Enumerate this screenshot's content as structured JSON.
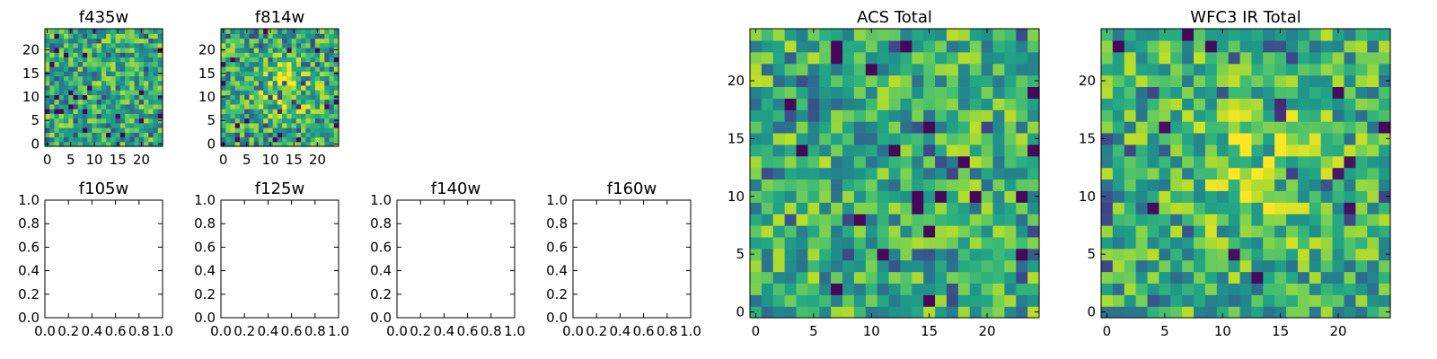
{
  "chart_data": [
    {
      "type": "heatmap",
      "title": "f435w",
      "grid_size": 25,
      "xticks": [
        0,
        5,
        10,
        15,
        20
      ],
      "yticks": [
        0,
        5,
        10,
        15,
        20
      ],
      "xlim": [
        -0.5,
        24.5
      ],
      "ylim": [
        -0.5,
        24.5
      ],
      "colormap": "viridis",
      "seed": 11,
      "darkness": 1.0,
      "hotspot": null
    },
    {
      "type": "heatmap",
      "title": "f814w",
      "grid_size": 25,
      "xticks": [
        0,
        5,
        10,
        15,
        20
      ],
      "yticks": [
        0,
        5,
        10,
        15,
        20
      ],
      "xlim": [
        -0.5,
        24.5
      ],
      "ylim": [
        -0.5,
        24.5
      ],
      "colormap": "viridis",
      "seed": 23,
      "darkness": 1.0,
      "hotspot": [
        13,
        12
      ]
    },
    {
      "type": "heatmap",
      "title": "ACS Total",
      "grid_size": 25,
      "xticks": [
        0,
        5,
        10,
        15,
        20
      ],
      "yticks": [
        0,
        5,
        10,
        15,
        20
      ],
      "xlim": [
        -0.5,
        24.5
      ],
      "ylim": [
        -0.5,
        24.5
      ],
      "colormap": "viridis",
      "seed": 37,
      "darkness": 0.7,
      "hotspot": null
    },
    {
      "type": "heatmap",
      "title": "WFC3 IR Total",
      "grid_size": 25,
      "xticks": [
        0,
        5,
        10,
        15,
        20
      ],
      "yticks": [
        0,
        5,
        10,
        15,
        20
      ],
      "xlim": [
        -0.5,
        24.5
      ],
      "ylim": [
        -0.5,
        24.5
      ],
      "colormap": "viridis",
      "seed": 53,
      "darkness": 0.6,
      "hotspot": [
        13,
        13
      ]
    },
    {
      "type": "empty",
      "title": "f105w",
      "xticks": [
        "0.0",
        "0.2",
        "0.4",
        "0.6",
        "0.8",
        "1.0"
      ],
      "yticks": [
        "0.0",
        "0.2",
        "0.4",
        "0.6",
        "0.8",
        "1.0"
      ],
      "xlim": [
        0,
        1
      ],
      "ylim": [
        0,
        1
      ]
    },
    {
      "type": "empty",
      "title": "f125w",
      "xticks": [
        "0.0",
        "0.2",
        "0.4",
        "0.6",
        "0.8",
        "1.0"
      ],
      "yticks": [
        "0.0",
        "0.2",
        "0.4",
        "0.6",
        "0.8",
        "1.0"
      ],
      "xlim": [
        0,
        1
      ],
      "ylim": [
        0,
        1
      ]
    },
    {
      "type": "empty",
      "title": "f140w",
      "xticks": [
        "0.0",
        "0.2",
        "0.4",
        "0.6",
        "0.8",
        "1.0"
      ],
      "yticks": [
        "0.0",
        "0.2",
        "0.4",
        "0.6",
        "0.8",
        "1.0"
      ],
      "xlim": [
        0,
        1
      ],
      "ylim": [
        0,
        1
      ]
    },
    {
      "type": "empty",
      "title": "f160w",
      "xticks": [
        "0.0",
        "0.2",
        "0.4",
        "0.6",
        "0.8",
        "1.0"
      ],
      "yticks": [
        "0.0",
        "0.2",
        "0.4",
        "0.6",
        "0.8",
        "1.0"
      ],
      "xlim": [
        0,
        1
      ],
      "ylim": [
        0,
        1
      ]
    }
  ]
}
